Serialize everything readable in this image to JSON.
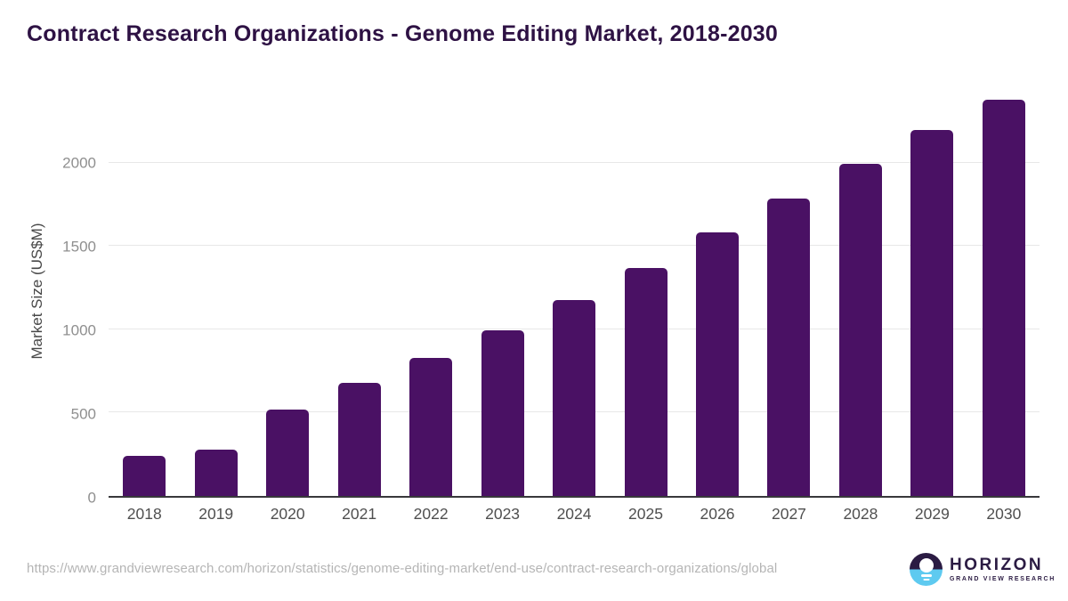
{
  "chart_data": {
    "type": "bar",
    "title": "Contract Research Organizations - Genome Editing Market, 2018-2030",
    "xlabel": "",
    "ylabel": "Market Size (US$M)",
    "categories": [
      "2018",
      "2019",
      "2020",
      "2021",
      "2022",
      "2023",
      "2024",
      "2025",
      "2026",
      "2027",
      "2028",
      "2029",
      "2030"
    ],
    "values": [
      240,
      280,
      520,
      680,
      830,
      995,
      1175,
      1370,
      1580,
      1785,
      1995,
      2195,
      2380
    ],
    "yticks": [
      0,
      500,
      1000,
      1500,
      2000
    ],
    "ylim": [
      0,
      2470
    ],
    "grid": "horizontal-only",
    "legend": "none",
    "bar_color": "#4a1164"
  },
  "colors": {
    "title": "#2e1244",
    "bar": "#4a1164",
    "gridline": "#e8e8e8",
    "axis_line": "#38383b",
    "y_tick_text": "#8f8f8f",
    "x_tick_text": "#4f4f4f",
    "url_text": "#b5b5b5",
    "logo_purple": "#2b1b43",
    "logo_blue": "#5ecaf0"
  },
  "footer": {
    "url": "https://www.grandviewresearch.com/horizon/statistics/genome-editing-market/end-use/contract-research-organizations/global",
    "logo": {
      "name": "HORIZON",
      "subtitle": "GRAND VIEW RESEARCH"
    }
  }
}
